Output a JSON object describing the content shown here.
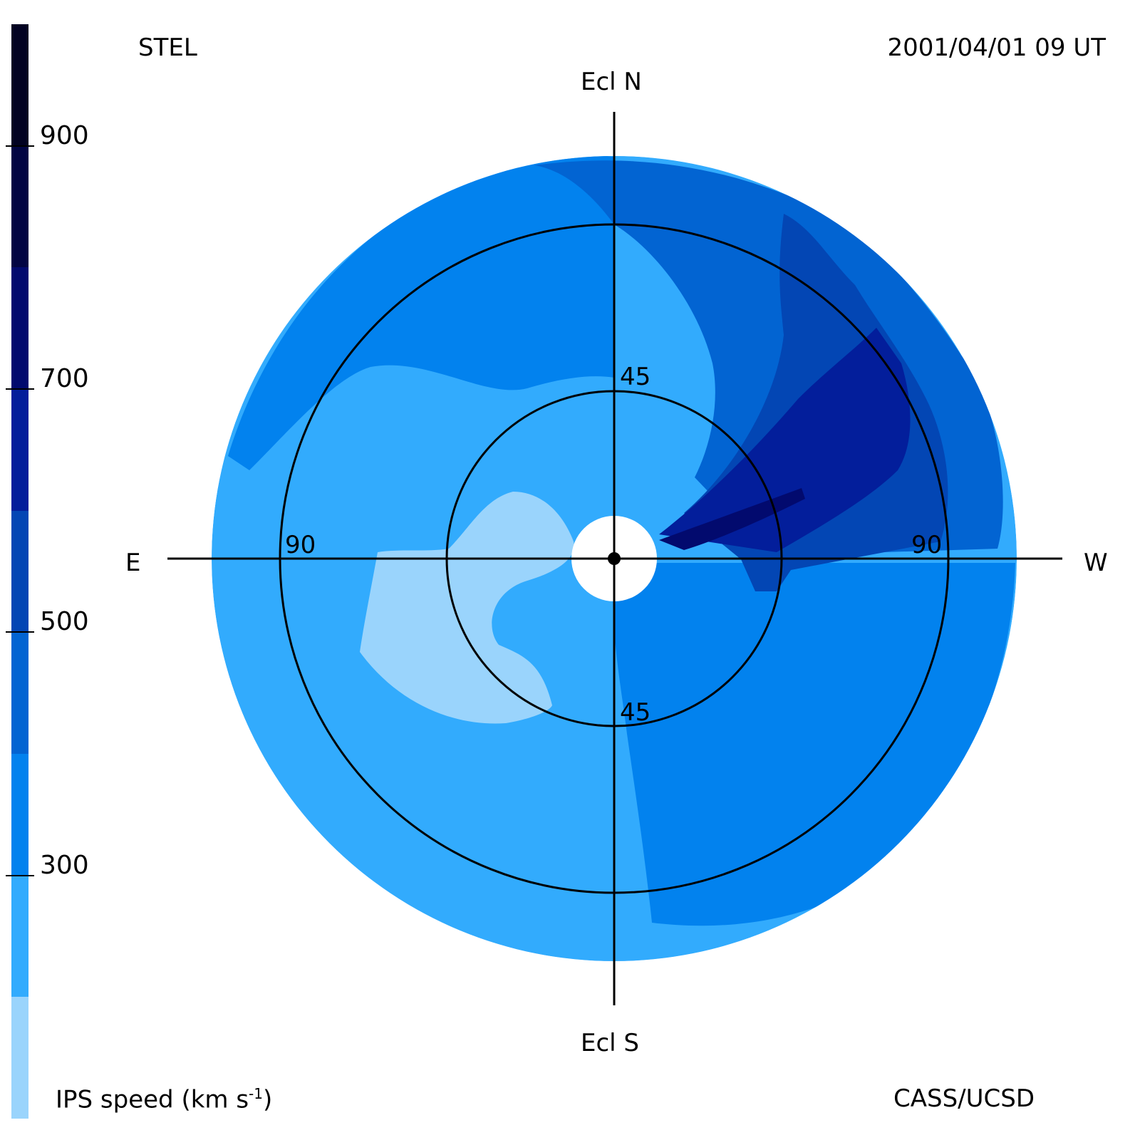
{
  "header": {
    "station": "STEL",
    "timestamp": "2001/04/01 09 UT"
  },
  "footer": {
    "quantity_label": "IPS speed (km s",
    "quantity_exp": "-1",
    "quantity_close": ")",
    "credit": "CASS/UCSD"
  },
  "colorbar": {
    "levels": [
      {
        "min": 100,
        "max": 200,
        "color": "#9ad4fc"
      },
      {
        "min": 200,
        "max": 300,
        "color": "#32abfd"
      },
      {
        "min": 300,
        "max": 400,
        "color": "#0282ee"
      },
      {
        "min": 400,
        "max": 500,
        "color": "#0264d2"
      },
      {
        "min": 500,
        "max": 600,
        "color": "#0346b4"
      },
      {
        "min": 600,
        "max": 700,
        "color": "#031e9b"
      },
      {
        "min": 700,
        "max": 800,
        "color": "#020a6e"
      },
      {
        "min": 800,
        "max": 900,
        "color": "#020543"
      },
      {
        "min": 900,
        "max": 1000,
        "color": "#020222"
      }
    ],
    "ticks": [
      "300",
      "500",
      "700",
      "900"
    ]
  },
  "chart_data": {
    "type": "heatmap",
    "projection": "polar sky map centred on the Sun",
    "direction_labels": {
      "north": "Ecl N",
      "south": "Ecl S",
      "east": "E",
      "west": "W"
    },
    "elongation_circles": [
      45,
      90
    ],
    "ring_labels": {
      "north_45": "45",
      "south_45": "45",
      "east_90": "90",
      "west_90": "90"
    },
    "elongation_range_deg": [
      0,
      120
    ],
    "speed_unit": "km s-1",
    "colorbar_range": [
      100,
      1000
    ],
    "colorbar_step": 100,
    "speed_regions": [
      {
        "region": "background ring, east and south",
        "speed_range": [
          200,
          300
        ]
      },
      {
        "region": "northeast outer sector",
        "speed_range": [
          300,
          400
        ]
      },
      {
        "region": "southeast inner arc",
        "speed_range": [
          100,
          200
        ]
      },
      {
        "region": "southwest quadrant",
        "speed_range": [
          300,
          400
        ]
      },
      {
        "region": "north-northwest sector",
        "speed_range": [
          400,
          500
        ]
      },
      {
        "region": "northwest outer sector",
        "speed_range": [
          500,
          600
        ]
      },
      {
        "region": "northwest high-speed stream",
        "speed_range": [
          600,
          700
        ]
      },
      {
        "region": "near-sun western core",
        "speed_range": [
          700,
          800
        ]
      }
    ]
  }
}
